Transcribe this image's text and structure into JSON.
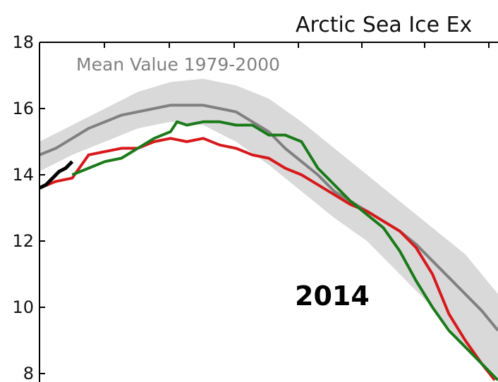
{
  "chart_data": {
    "type": "line",
    "title": "Arctic Sea Ice Ex",
    "ylim": [
      8,
      18
    ],
    "y_ticks": [
      "18",
      "16",
      "14",
      "12",
      "10",
      "8"
    ],
    "xlim": [
      0,
      140
    ],
    "mean_label": "Mean Value 1979-2000",
    "year_label": "2014",
    "grid": false,
    "colors": {
      "mean": "#808080",
      "band": "#d9d9d9",
      "red": "#d7191c",
      "green": "#1a7a1a",
      "current": "#000000"
    },
    "band": {
      "x": [
        0,
        10,
        20,
        30,
        40,
        50,
        60,
        70,
        80,
        90,
        100,
        110,
        120,
        130,
        140
      ],
      "lower": [
        14.1,
        14.6,
        15.0,
        15.4,
        15.6,
        15.5,
        15.0,
        14.3,
        13.5,
        12.7,
        12.0,
        11.0,
        10.0,
        8.8,
        7.9
      ],
      "upper": [
        15.0,
        15.5,
        16.0,
        16.5,
        16.8,
        16.9,
        16.7,
        16.3,
        15.6,
        14.8,
        14.0,
        13.2,
        12.4,
        11.6,
        10.4
      ]
    },
    "series": [
      {
        "key": "mean",
        "x": [
          0,
          5,
          10,
          15,
          20,
          25,
          30,
          35,
          40,
          45,
          50,
          55,
          60,
          65,
          70,
          75,
          80,
          85,
          90,
          95,
          100,
          105,
          110,
          115,
          120,
          125,
          130,
          135,
          140
        ],
        "y": [
          14.6,
          14.8,
          15.1,
          15.4,
          15.6,
          15.8,
          15.9,
          16.0,
          16.1,
          16.1,
          16.1,
          16.0,
          15.9,
          15.6,
          15.3,
          14.8,
          14.4,
          14.0,
          13.5,
          13.2,
          12.9,
          12.6,
          12.3,
          11.9,
          11.4,
          10.9,
          10.4,
          9.9,
          9.3
        ]
      },
      {
        "key": "red",
        "x": [
          0,
          5,
          10,
          15,
          20,
          25,
          30,
          35,
          40,
          45,
          50,
          55,
          60,
          65,
          70,
          75,
          80,
          85,
          90,
          95,
          100,
          105,
          110,
          115,
          120,
          125,
          130,
          135,
          139
        ],
        "y": [
          13.6,
          13.8,
          13.9,
          14.6,
          14.7,
          14.8,
          14.8,
          15.0,
          15.1,
          15.0,
          15.1,
          14.9,
          14.8,
          14.6,
          14.5,
          14.2,
          14.0,
          13.7,
          13.4,
          13.1,
          12.9,
          12.6,
          12.3,
          11.8,
          11.0,
          9.8,
          9.0,
          8.3,
          7.8
        ]
      },
      {
        "key": "green",
        "x": [
          10,
          15,
          20,
          25,
          30,
          35,
          40,
          42,
          45,
          50,
          55,
          60,
          65,
          70,
          75,
          80,
          85,
          90,
          95,
          100,
          105,
          110,
          115,
          120,
          125,
          130,
          135,
          140
        ],
        "y": [
          14.0,
          14.2,
          14.4,
          14.5,
          14.8,
          15.1,
          15.3,
          15.6,
          15.5,
          15.6,
          15.6,
          15.5,
          15.5,
          15.2,
          15.2,
          15.0,
          14.2,
          13.7,
          13.2,
          12.8,
          12.4,
          11.7,
          10.8,
          10.0,
          9.3,
          8.8,
          8.3,
          7.8
        ]
      },
      {
        "key": "current",
        "x": [
          0,
          2,
          4,
          6,
          8,
          10
        ],
        "y": [
          13.6,
          13.7,
          13.9,
          14.1,
          14.2,
          14.4
        ]
      }
    ]
  }
}
